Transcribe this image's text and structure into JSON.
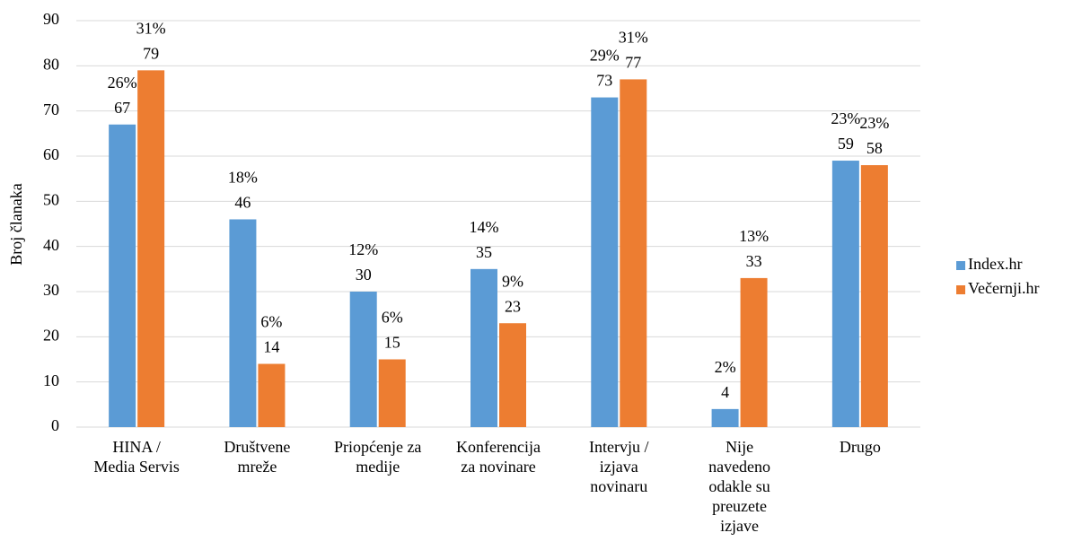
{
  "chart_data": {
    "type": "bar",
    "y_label": "Broj članaka",
    "categories": [
      "HINA /\nMedia Servis",
      "Društvene\nmreže",
      "Priopćenje za\nmedije",
      "Konferencija\nza novinare",
      "Intervju /\nizjava\nnovinaru",
      "Nije\nnavedeno\nodakle su\npreuzete\nizjave",
      "Drugo"
    ],
    "series": [
      {
        "name": "Index.hr",
        "color": "#5b9bd5",
        "values": [
          67,
          46,
          30,
          35,
          73,
          4,
          59
        ],
        "shares": [
          "26%",
          "18%",
          "12%",
          "14%",
          "29%",
          "2%",
          "23%"
        ]
      },
      {
        "name": "Večernji.hr",
        "color": "#ed7d31",
        "values": [
          79,
          14,
          15,
          23,
          77,
          33,
          58
        ],
        "shares": [
          "31%",
          "6%",
          "6%",
          "9%",
          "31%",
          "13%",
          "23%"
        ]
      }
    ],
    "ylim": [
      0,
      90
    ],
    "yticks": [
      0,
      10,
      20,
      30,
      40,
      50,
      60,
      70,
      80,
      90
    ],
    "grid": true,
    "legend": "right"
  }
}
